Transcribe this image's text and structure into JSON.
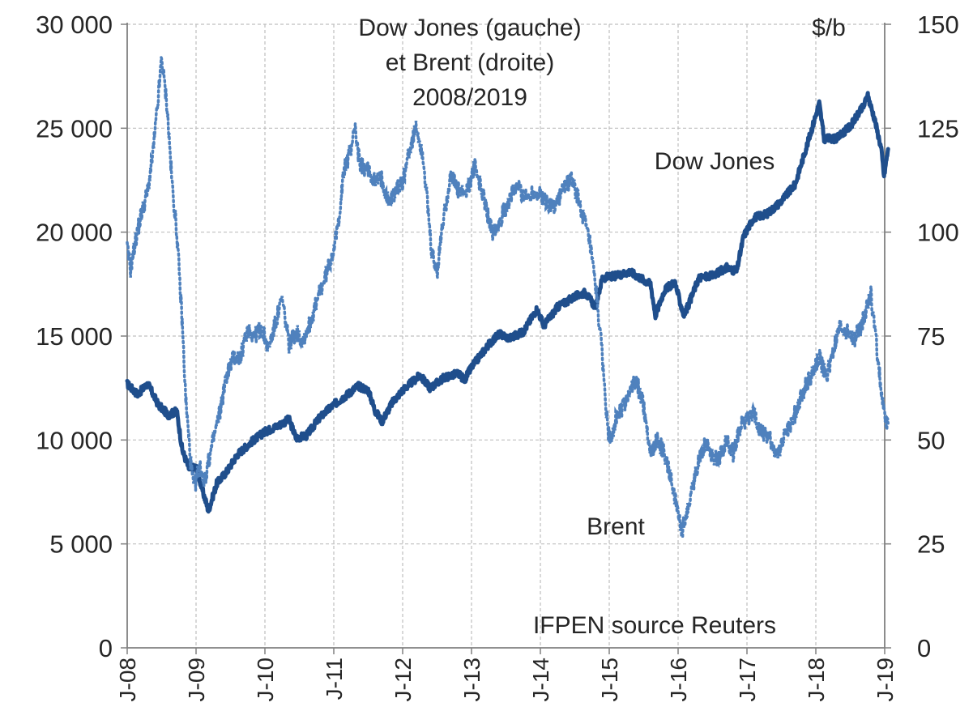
{
  "chart_data": {
    "type": "line",
    "title_lines": [
      "Dow Jones  (gauche)",
      "et Brent (droite)",
      "2008/2019"
    ],
    "right_unit": "$/b",
    "source": "IFPEN source Reuters",
    "x_ticks": [
      "J-08",
      "J-09",
      "J-10",
      "J-11",
      "J-12",
      "J-13",
      "J-14",
      "J-15",
      "J-16",
      "J-17",
      "J-18",
      "J-19"
    ],
    "x_range": [
      2008.0,
      2019.2
    ],
    "left_axis": {
      "ticks": [
        "30 000",
        "25 000",
        "20 000",
        "15 000",
        "10 000",
        "5 000",
        "0"
      ],
      "ylim": [
        0,
        30000
      ]
    },
    "right_axis": {
      "ticks": [
        "150",
        "125",
        "100",
        "75",
        "50",
        "25",
        "0"
      ],
      "ylim": [
        0,
        150
      ]
    },
    "grid": true,
    "series": [
      {
        "name": "Dow Jones",
        "axis": "left",
        "style": "solid",
        "color": "#1f4e8c",
        "points": [
          [
            2008.0,
            12700
          ],
          [
            2008.15,
            12200
          ],
          [
            2008.3,
            12700
          ],
          [
            2008.45,
            11700
          ],
          [
            2008.6,
            11200
          ],
          [
            2008.72,
            11400
          ],
          [
            2008.8,
            9500
          ],
          [
            2008.9,
            8600
          ],
          [
            2009.0,
            8700
          ],
          [
            2009.1,
            7500
          ],
          [
            2009.18,
            6600
          ],
          [
            2009.3,
            7900
          ],
          [
            2009.45,
            8500
          ],
          [
            2009.6,
            9300
          ],
          [
            2009.8,
            9900
          ],
          [
            2010.0,
            10400
          ],
          [
            2010.2,
            10700
          ],
          [
            2010.35,
            11000
          ],
          [
            2010.45,
            10100
          ],
          [
            2010.6,
            10200
          ],
          [
            2010.8,
            11100
          ],
          [
            2011.0,
            11700
          ],
          [
            2011.2,
            12200
          ],
          [
            2011.35,
            12600
          ],
          [
            2011.5,
            12400
          ],
          [
            2011.6,
            11400
          ],
          [
            2011.7,
            10900
          ],
          [
            2011.85,
            11800
          ],
          [
            2012.0,
            12400
          ],
          [
            2012.25,
            13100
          ],
          [
            2012.4,
            12500
          ],
          [
            2012.6,
            13000
          ],
          [
            2012.8,
            13200
          ],
          [
            2012.9,
            12900
          ],
          [
            2013.0,
            13500
          ],
          [
            2013.25,
            14600
          ],
          [
            2013.4,
            15100
          ],
          [
            2013.55,
            14900
          ],
          [
            2013.75,
            15200
          ],
          [
            2013.95,
            16300
          ],
          [
            2014.05,
            15500
          ],
          [
            2014.25,
            16400
          ],
          [
            2014.5,
            16900
          ],
          [
            2014.65,
            17100
          ],
          [
            2014.8,
            16400
          ],
          [
            2014.9,
            17800
          ],
          [
            2015.1,
            17900
          ],
          [
            2015.3,
            18100
          ],
          [
            2015.5,
            17700
          ],
          [
            2015.6,
            17500
          ],
          [
            2015.67,
            16000
          ],
          [
            2015.8,
            17200
          ],
          [
            2015.95,
            17600
          ],
          [
            2016.08,
            16000
          ],
          [
            2016.15,
            16500
          ],
          [
            2016.3,
            17800
          ],
          [
            2016.5,
            17900
          ],
          [
            2016.7,
            18300
          ],
          [
            2016.85,
            18100
          ],
          [
            2016.95,
            19800
          ],
          [
            2017.1,
            20700
          ],
          [
            2017.3,
            20900
          ],
          [
            2017.5,
            21500
          ],
          [
            2017.7,
            22300
          ],
          [
            2017.9,
            24500
          ],
          [
            2018.05,
            26200
          ],
          [
            2018.12,
            24500
          ],
          [
            2018.3,
            24500
          ],
          [
            2018.5,
            25100
          ],
          [
            2018.7,
            26100
          ],
          [
            2018.75,
            26600
          ],
          [
            2018.85,
            25500
          ],
          [
            2018.95,
            24000
          ],
          [
            2018.99,
            22700
          ],
          [
            2019.05,
            24000
          ]
        ]
      },
      {
        "name": "Brent",
        "axis": "right",
        "style": "dotted",
        "color": "#4f81bd",
        "points": [
          [
            2008.0,
            96
          ],
          [
            2008.05,
            91
          ],
          [
            2008.12,
            98
          ],
          [
            2008.2,
            104
          ],
          [
            2008.3,
            110
          ],
          [
            2008.38,
            120
          ],
          [
            2008.45,
            132
          ],
          [
            2008.5,
            142
          ],
          [
            2008.58,
            130
          ],
          [
            2008.65,
            112
          ],
          [
            2008.72,
            100
          ],
          [
            2008.8,
            78
          ],
          [
            2008.85,
            60
          ],
          [
            2008.92,
            45
          ],
          [
            2008.97,
            38
          ],
          [
            2009.05,
            44
          ],
          [
            2009.12,
            40
          ],
          [
            2009.25,
            50
          ],
          [
            2009.35,
            57
          ],
          [
            2009.45,
            66
          ],
          [
            2009.55,
            70
          ],
          [
            2009.65,
            70
          ],
          [
            2009.75,
            77
          ],
          [
            2009.85,
            75
          ],
          [
            2009.95,
            77
          ],
          [
            2010.05,
            72
          ],
          [
            2010.15,
            78
          ],
          [
            2010.25,
            84
          ],
          [
            2010.35,
            73
          ],
          [
            2010.45,
            76
          ],
          [
            2010.55,
            74
          ],
          [
            2010.65,
            78
          ],
          [
            2010.75,
            83
          ],
          [
            2010.85,
            88
          ],
          [
            2010.95,
            93
          ],
          [
            2011.05,
            100
          ],
          [
            2011.15,
            115
          ],
          [
            2011.25,
            120
          ],
          [
            2011.3,
            126
          ],
          [
            2011.38,
            116
          ],
          [
            2011.5,
            115
          ],
          [
            2011.6,
            112
          ],
          [
            2011.7,
            113
          ],
          [
            2011.8,
            107
          ],
          [
            2011.9,
            110
          ],
          [
            2012.0,
            112
          ],
          [
            2012.1,
            120
          ],
          [
            2012.2,
            125
          ],
          [
            2012.3,
            118
          ],
          [
            2012.42,
            95
          ],
          [
            2012.5,
            90
          ],
          [
            2012.58,
            102
          ],
          [
            2012.7,
            114
          ],
          [
            2012.8,
            110
          ],
          [
            2012.92,
            109
          ],
          [
            2013.05,
            116
          ],
          [
            2013.15,
            110
          ],
          [
            2013.3,
            100
          ],
          [
            2013.42,
            103
          ],
          [
            2013.55,
            108
          ],
          [
            2013.67,
            111
          ],
          [
            2013.8,
            108
          ],
          [
            2013.9,
            110
          ],
          [
            2014.05,
            108
          ],
          [
            2014.2,
            106
          ],
          [
            2014.35,
            111
          ],
          [
            2014.45,
            113
          ],
          [
            2014.55,
            108
          ],
          [
            2014.65,
            102
          ],
          [
            2014.72,
            97
          ],
          [
            2014.82,
            84
          ],
          [
            2014.9,
            70
          ],
          [
            2014.95,
            58
          ],
          [
            2015.0,
            50
          ],
          [
            2015.1,
            55
          ],
          [
            2015.2,
            58
          ],
          [
            2015.3,
            62
          ],
          [
            2015.4,
            64
          ],
          [
            2015.5,
            58
          ],
          [
            2015.6,
            47
          ],
          [
            2015.7,
            50
          ],
          [
            2015.8,
            47
          ],
          [
            2015.9,
            40
          ],
          [
            2016.0,
            32
          ],
          [
            2016.06,
            28
          ],
          [
            2016.12,
            32
          ],
          [
            2016.2,
            38
          ],
          [
            2016.3,
            45
          ],
          [
            2016.4,
            50
          ],
          [
            2016.5,
            46
          ],
          [
            2016.6,
            46
          ],
          [
            2016.7,
            50
          ],
          [
            2016.8,
            47
          ],
          [
            2016.9,
            53
          ],
          [
            2017.0,
            55
          ],
          [
            2017.1,
            56
          ],
          [
            2017.2,
            52
          ],
          [
            2017.35,
            50
          ],
          [
            2017.45,
            46
          ],
          [
            2017.55,
            52
          ],
          [
            2017.65,
            54
          ],
          [
            2017.75,
            59
          ],
          [
            2017.85,
            63
          ],
          [
            2017.95,
            66
          ],
          [
            2018.05,
            70
          ],
          [
            2018.15,
            65
          ],
          [
            2018.25,
            71
          ],
          [
            2018.35,
            77
          ],
          [
            2018.45,
            76
          ],
          [
            2018.55,
            74
          ],
          [
            2018.65,
            77
          ],
          [
            2018.72,
            81
          ],
          [
            2018.8,
            85
          ],
          [
            2018.88,
            73
          ],
          [
            2018.95,
            62
          ],
          [
            2019.0,
            55
          ],
          [
            2019.05,
            54
          ]
        ]
      }
    ]
  }
}
